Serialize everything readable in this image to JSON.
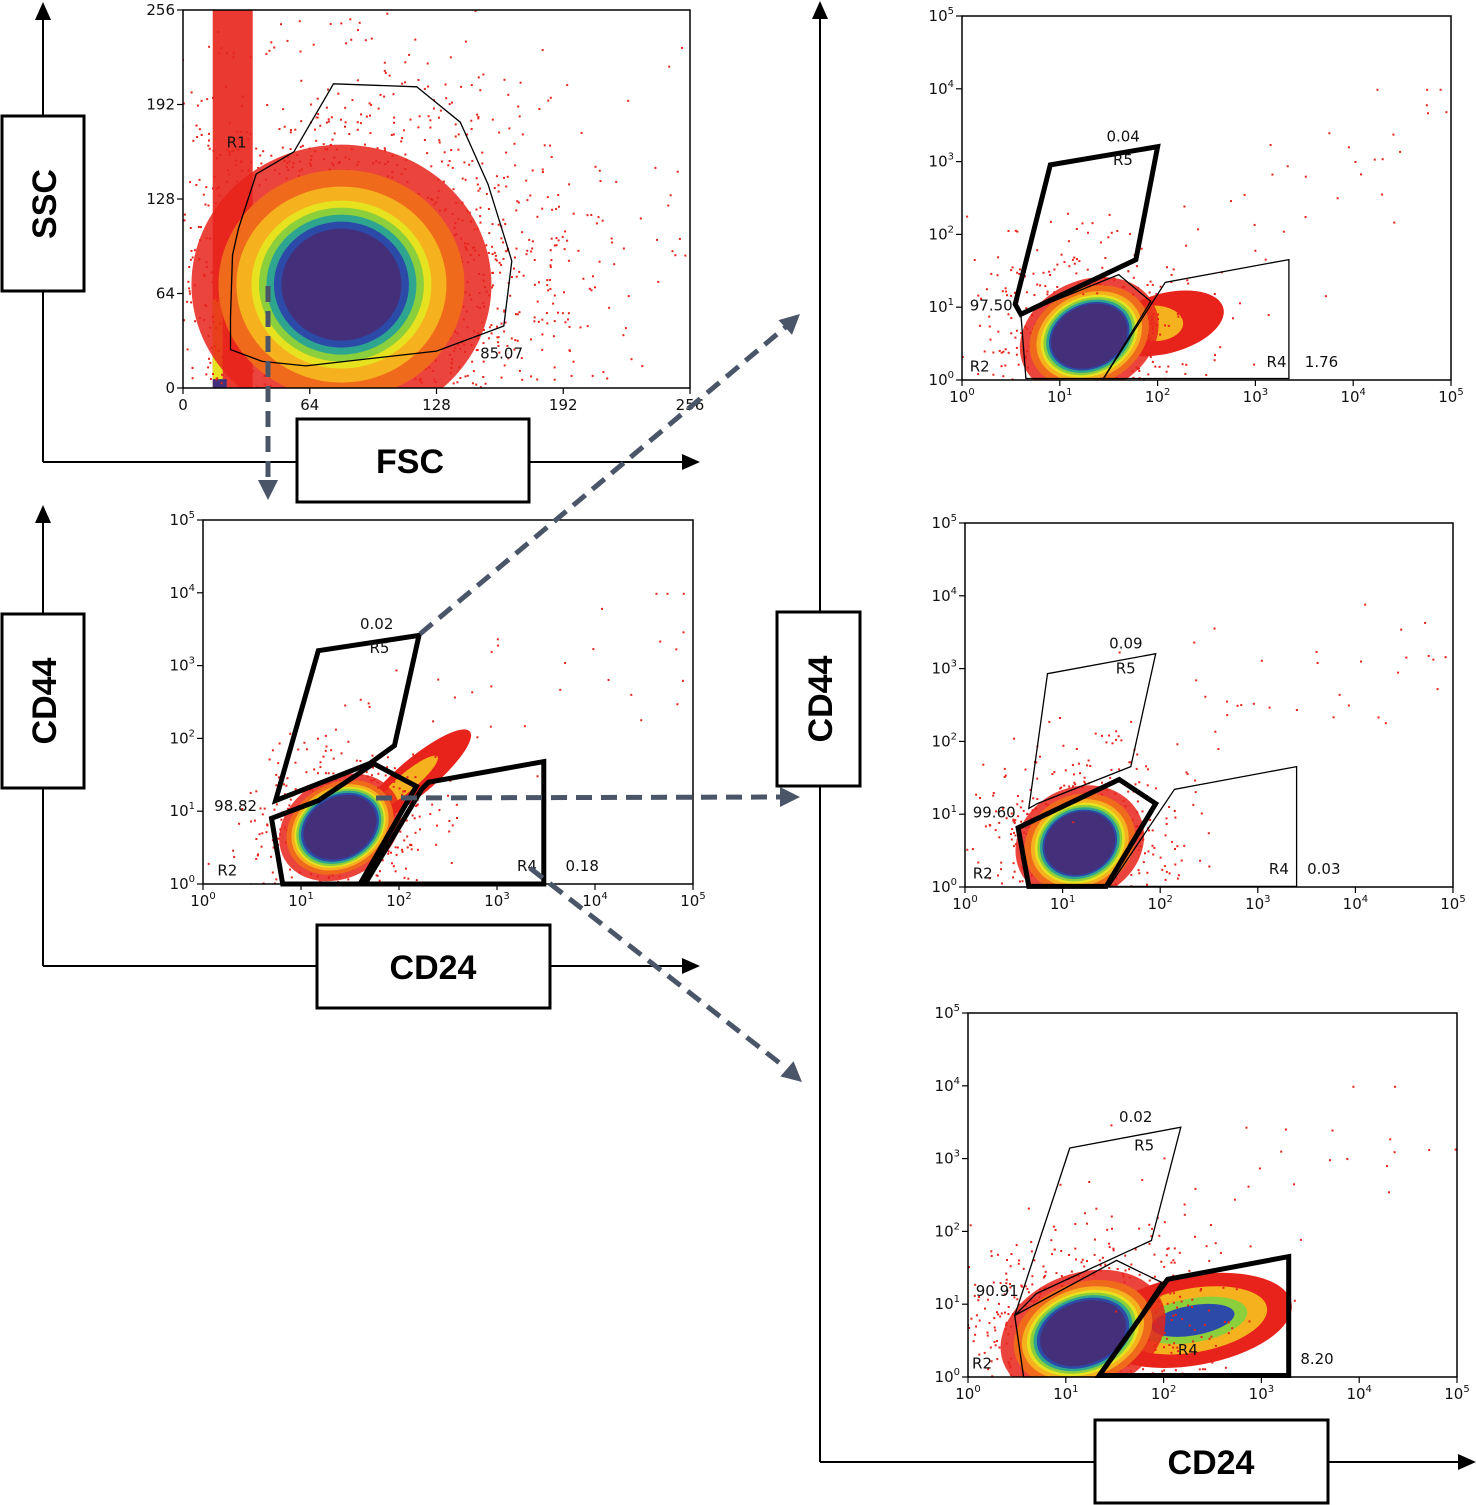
{
  "figure": {
    "description": "Flow cytometry gating of CD44/CD24 populations",
    "axis_boxes": {
      "ssc": "SSC",
      "fsc": "FSC",
      "cd44_left": "CD44",
      "cd24_left": "CD24",
      "cd44_right": "CD44",
      "cd24_right": "CD24"
    },
    "arrow_color": "#4a5568",
    "density_colors": [
      "#e8231b",
      "#f06a1c",
      "#f6b21e",
      "#e6e21f",
      "#8ccf3c",
      "#2ea58f",
      "#2c4aa8",
      "#44307a"
    ]
  },
  "chart_data": [
    {
      "id": "fsc-ssc",
      "type": "scatter",
      "title": "",
      "xlabel": "FSC",
      "ylabel": "SSC",
      "xscale": "linear",
      "yscale": "linear",
      "xlim": [
        0,
        256
      ],
      "ylim": [
        0,
        256
      ],
      "xticks": [
        "0",
        "64",
        "128",
        "192",
        "256"
      ],
      "yticks": [
        "0",
        "64",
        "128",
        "192",
        "256"
      ],
      "population_center": [
        80,
        70
      ],
      "gates": [
        {
          "name": "R1",
          "style": "thin",
          "percent": "85.07",
          "vertices": [
            [
              46,
              152
            ],
            [
              56,
              160
            ],
            [
              76,
              206
            ],
            [
              118,
              204
            ],
            [
              140,
              180
            ],
            [
              154,
              138
            ],
            [
              166,
              86
            ],
            [
              162,
              42
            ],
            [
              128,
              25
            ],
            [
              62,
              15
            ],
            [
              40,
              18
            ],
            [
              24,
              26
            ],
            [
              24,
              48
            ],
            [
              25,
              90
            ],
            [
              28,
              108
            ],
            [
              37,
              145
            ]
          ],
          "label_pos": [
            22,
            163
          ],
          "percent_pos": [
            150,
            20
          ]
        }
      ]
    },
    {
      "id": "cd24-cd44-main",
      "type": "scatter",
      "title": "",
      "xlabel": "CD24",
      "ylabel": "CD44",
      "xscale": "log",
      "yscale": "log",
      "xlim": [
        1,
        100000
      ],
      "ylim": [
        1,
        100000
      ],
      "xticks": [
        "10^0",
        "10^1",
        "10^2",
        "10^3",
        "10^4",
        "10^5"
      ],
      "yticks": [
        "10^0",
        "10^1",
        "10^2",
        "10^3",
        "10^4",
        "10^5"
      ],
      "population_center": [
        25,
        6
      ],
      "gates": [
        {
          "name": "R5",
          "style": "thick",
          "percent": "0.02",
          "vertices": [
            [
              15,
              1600
            ],
            [
              160,
              2600
            ],
            [
              90,
              80
            ],
            [
              50,
              45
            ],
            [
              5.5,
              14
            ]
          ],
          "label_pos": [
            50,
            1500
          ],
          "percent_pos": [
            40,
            3200
          ]
        },
        {
          "name": "R2",
          "style": "thick",
          "percent": "98.82",
          "vertices": [
            [
              5,
              8
            ],
            [
              6.5,
              1
            ],
            [
              40,
              1
            ],
            [
              150,
              22
            ],
            [
              55,
              45
            ],
            [
              15,
              14
            ]
          ],
          "label_pos": [
            1.4,
            1.3
          ],
          "percent_pos": [
            1.3,
            10
          ]
        },
        {
          "name": "R4",
          "style": "thick",
          "percent": "0.18",
          "vertices": [
            [
              45,
              1
            ],
            [
              3000,
              1
            ],
            [
              3000,
              48
            ],
            [
              200,
              25
            ],
            [
              170,
              20
            ]
          ],
          "label_pos": [
            1600,
            1.5
          ],
          "percent_pos": [
            5000,
            1.5
          ]
        }
      ]
    },
    {
      "id": "cd24-cd44-r5",
      "type": "scatter",
      "title": "",
      "xlabel": "CD24",
      "ylabel": "CD44",
      "xscale": "log",
      "yscale": "log",
      "xlim": [
        1,
        100000
      ],
      "ylim": [
        1,
        100000
      ],
      "xticks": [
        "10^0",
        "10^1",
        "10^2",
        "10^3",
        "10^4",
        "10^5"
      ],
      "yticks": [
        "10^0",
        "10^1",
        "10^2",
        "10^3",
        "10^4",
        "10^5"
      ],
      "population_center": [
        20,
        4
      ],
      "gates": [
        {
          "name": "R5",
          "style": "thick",
          "percent": "0.04",
          "vertices": [
            [
              8,
              900
            ],
            [
              100,
              1600
            ],
            [
              60,
              45
            ],
            [
              4,
              8
            ],
            [
              3.5,
              11
            ]
          ],
          "label_pos": [
            35,
            900
          ],
          "percent_pos": [
            30,
            1900
          ]
        },
        {
          "name": "R2",
          "style": "thin",
          "percent": "97.50",
          "vertices": [
            [
              4,
              8
            ],
            [
              4.5,
              1.05
            ],
            [
              28,
              1.05
            ],
            [
              85,
              12
            ],
            [
              40,
              28
            ]
          ],
          "label_pos": [
            1.2,
            1.3
          ],
          "percent_pos": [
            1.2,
            9
          ]
        },
        {
          "name": "R4",
          "style": "thin",
          "percent": "1.76",
          "vertices": [
            [
              28,
              1.05
            ],
            [
              2200,
              1.05
            ],
            [
              2200,
              45
            ],
            [
              120,
              22
            ]
          ],
          "label_pos": [
            1300,
            1.5
          ],
          "percent_pos": [
            3200,
            1.5
          ]
        }
      ]
    },
    {
      "id": "cd24-cd44-r2",
      "type": "scatter",
      "title": "",
      "xlabel": "CD24",
      "ylabel": "CD44",
      "xscale": "log",
      "yscale": "log",
      "xlim": [
        1,
        100000
      ],
      "ylim": [
        1,
        100000
      ],
      "xticks": [
        "10^0",
        "10^1",
        "10^2",
        "10^3",
        "10^4",
        "10^5"
      ],
      "yticks": [
        "10^0",
        "10^1",
        "10^2",
        "10^3",
        "10^4",
        "10^5"
      ],
      "population_center": [
        15,
        4
      ],
      "gates": [
        {
          "name": "R5",
          "style": "thin",
          "percent": "0.09",
          "vertices": [
            [
              7,
              850
            ],
            [
              90,
              1600
            ],
            [
              50,
              45
            ],
            [
              5.5,
              14
            ],
            [
              4.5,
              12
            ]
          ],
          "label_pos": [
            35,
            850
          ],
          "percent_pos": [
            30,
            1900
          ]
        },
        {
          "name": "R2",
          "style": "thick",
          "percent": "99.60",
          "vertices": [
            [
              3.5,
              6.5
            ],
            [
              4.5,
              1.02
            ],
            [
              28,
              1.02
            ],
            [
              90,
              14
            ],
            [
              38,
              30
            ]
          ],
          "label_pos": [
            1.2,
            1.3
          ],
          "percent_pos": [
            1.2,
            9
          ]
        },
        {
          "name": "R4",
          "style": "thin",
          "percent": "0.03",
          "vertices": [
            [
              30,
              1.02
            ],
            [
              2500,
              1.02
            ],
            [
              2500,
              45
            ],
            [
              140,
              22
            ]
          ],
          "label_pos": [
            1300,
            1.5
          ],
          "percent_pos": [
            3200,
            1.5
          ]
        }
      ]
    },
    {
      "id": "cd24-cd44-r4",
      "type": "scatter",
      "title": "",
      "xlabel": "CD24",
      "ylabel": "CD44",
      "xscale": "log",
      "yscale": "log",
      "xlim": [
        1,
        100000
      ],
      "ylim": [
        1,
        100000
      ],
      "xticks": [
        "10^0",
        "10^1",
        "10^2",
        "10^3",
        "10^4",
        "10^5"
      ],
      "yticks": [
        "10^0",
        "10^1",
        "10^2",
        "10^3",
        "10^4",
        "10^5"
      ],
      "population_center": [
        15,
        4
      ],
      "second_population_center": [
        200,
        6
      ],
      "gates": [
        {
          "name": "R5",
          "style": "thin",
          "percent": "0.02",
          "vertices": [
            [
              11,
              1400
            ],
            [
              150,
              2700
            ],
            [
              75,
              75
            ],
            [
              5,
              14
            ],
            [
              3,
              7
            ]
          ],
          "label_pos": [
            50,
            1300
          ],
          "percent_pos": [
            35,
            3200
          ]
        },
        {
          "name": "R2",
          "style": "thin",
          "percent": "90.91",
          "vertices": [
            [
              3,
              7
            ],
            [
              3.7,
              1
            ],
            [
              22,
              1
            ],
            [
              95,
              20
            ],
            [
              33,
              40
            ]
          ],
          "label_pos": [
            1.1,
            1.3
          ],
          "percent_pos": [
            1.2,
            13
          ]
        },
        {
          "name": "R4",
          "style": "thick",
          "percent": "8.20",
          "vertices": [
            [
              22,
              1.05
            ],
            [
              1900,
              1.05
            ],
            [
              1900,
              45
            ],
            [
              110,
              22
            ]
          ],
          "label_pos": [
            140,
            2
          ],
          "percent_pos": [
            2500,
            1.5
          ]
        }
      ]
    }
  ]
}
